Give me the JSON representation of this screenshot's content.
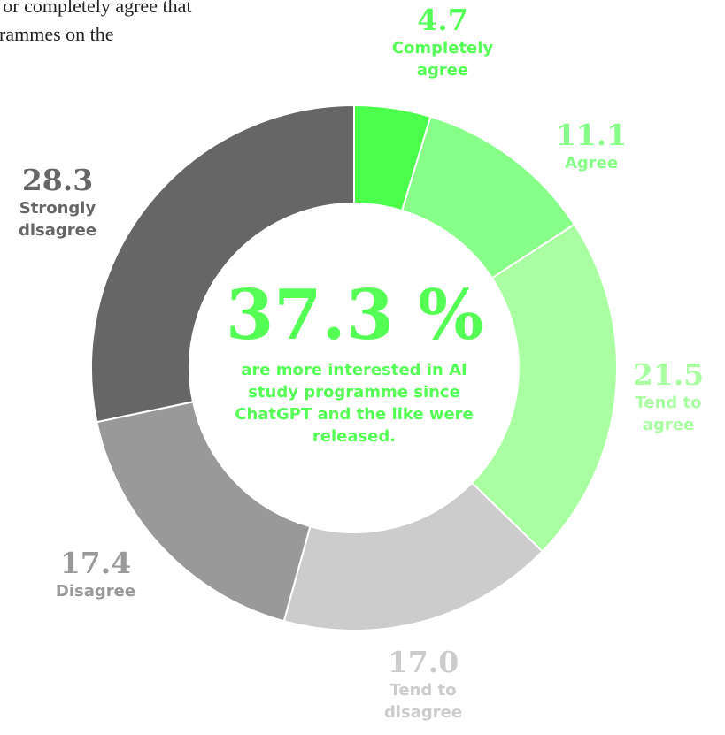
{
  "intro": {
    "line1": "e or completely agree that",
    "line2": "grammes on the"
  },
  "center": {
    "value": "37.3 %",
    "description": "are more interested in AI study programme since ChatGPT and the like were released."
  },
  "colors": {
    "accent": "#55ff55"
  },
  "chart_data": {
    "type": "pie",
    "donut": true,
    "categories": [
      "Completely agree",
      "Agree",
      "Tend to agree",
      "Tend to disagree",
      "Disagree",
      "Strongly disagree"
    ],
    "values": [
      4.7,
      11.1,
      21.5,
      17.0,
      17.4,
      28.3
    ],
    "value_labels": [
      "4.7",
      "11.1",
      "21.5",
      "17.0",
      "17.4",
      "28.3"
    ],
    "colors": [
      "#4dff4d",
      "#88ff88",
      "#aaffa2",
      "#cccccc",
      "#999999",
      "#666666"
    ],
    "label_colors": [
      "#55ff55",
      "#88ff88",
      "#aaffa2",
      "#cccccc",
      "#999999",
      "#666666"
    ],
    "start_angle_deg": 0,
    "direction": "clockwise"
  }
}
